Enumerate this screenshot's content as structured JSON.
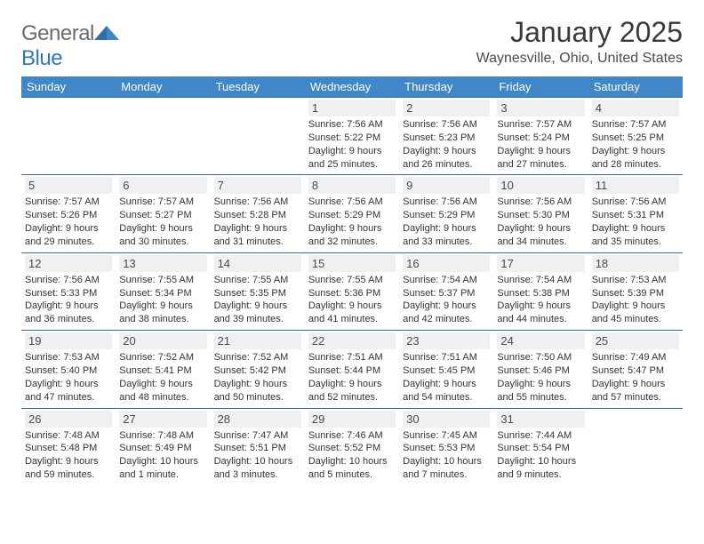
{
  "colors": {
    "header_bg": "#3f87c6",
    "header_text": "#ffffff",
    "daynum_bg": "#eef0f1",
    "daynum_text": "#4a4a4a",
    "row_border": "#2f6ea6",
    "title_text": "#3a3a3a",
    "body_text": "#333333",
    "logo_gray": "#6b6b6b",
    "logo_blue": "#2f79bf"
  },
  "logo": {
    "part1": "General",
    "part2": "Blue"
  },
  "title": "January 2025",
  "location": "Waynesville, Ohio, United States",
  "day_headers": [
    "Sunday",
    "Monday",
    "Tuesday",
    "Wednesday",
    "Thursday",
    "Friday",
    "Saturday"
  ],
  "weeks": [
    [
      {
        "blank": true
      },
      {
        "blank": true
      },
      {
        "blank": true
      },
      {
        "n": "1",
        "sr": "7:56 AM",
        "ss": "5:22 PM",
        "dl": "9 hours and 25 minutes."
      },
      {
        "n": "2",
        "sr": "7:56 AM",
        "ss": "5:23 PM",
        "dl": "9 hours and 26 minutes."
      },
      {
        "n": "3",
        "sr": "7:57 AM",
        "ss": "5:24 PM",
        "dl": "9 hours and 27 minutes."
      },
      {
        "n": "4",
        "sr": "7:57 AM",
        "ss": "5:25 PM",
        "dl": "9 hours and 28 minutes."
      }
    ],
    [
      {
        "n": "5",
        "sr": "7:57 AM",
        "ss": "5:26 PM",
        "dl": "9 hours and 29 minutes."
      },
      {
        "n": "6",
        "sr": "7:57 AM",
        "ss": "5:27 PM",
        "dl": "9 hours and 30 minutes."
      },
      {
        "n": "7",
        "sr": "7:56 AM",
        "ss": "5:28 PM",
        "dl": "9 hours and 31 minutes."
      },
      {
        "n": "8",
        "sr": "7:56 AM",
        "ss": "5:29 PM",
        "dl": "9 hours and 32 minutes."
      },
      {
        "n": "9",
        "sr": "7:56 AM",
        "ss": "5:29 PM",
        "dl": "9 hours and 33 minutes."
      },
      {
        "n": "10",
        "sr": "7:56 AM",
        "ss": "5:30 PM",
        "dl": "9 hours and 34 minutes."
      },
      {
        "n": "11",
        "sr": "7:56 AM",
        "ss": "5:31 PM",
        "dl": "9 hours and 35 minutes."
      }
    ],
    [
      {
        "n": "12",
        "sr": "7:56 AM",
        "ss": "5:33 PM",
        "dl": "9 hours and 36 minutes."
      },
      {
        "n": "13",
        "sr": "7:55 AM",
        "ss": "5:34 PM",
        "dl": "9 hours and 38 minutes."
      },
      {
        "n": "14",
        "sr": "7:55 AM",
        "ss": "5:35 PM",
        "dl": "9 hours and 39 minutes."
      },
      {
        "n": "15",
        "sr": "7:55 AM",
        "ss": "5:36 PM",
        "dl": "9 hours and 41 minutes."
      },
      {
        "n": "16",
        "sr": "7:54 AM",
        "ss": "5:37 PM",
        "dl": "9 hours and 42 minutes."
      },
      {
        "n": "17",
        "sr": "7:54 AM",
        "ss": "5:38 PM",
        "dl": "9 hours and 44 minutes."
      },
      {
        "n": "18",
        "sr": "7:53 AM",
        "ss": "5:39 PM",
        "dl": "9 hours and 45 minutes."
      }
    ],
    [
      {
        "n": "19",
        "sr": "7:53 AM",
        "ss": "5:40 PM",
        "dl": "9 hours and 47 minutes."
      },
      {
        "n": "20",
        "sr": "7:52 AM",
        "ss": "5:41 PM",
        "dl": "9 hours and 48 minutes."
      },
      {
        "n": "21",
        "sr": "7:52 AM",
        "ss": "5:42 PM",
        "dl": "9 hours and 50 minutes."
      },
      {
        "n": "22",
        "sr": "7:51 AM",
        "ss": "5:44 PM",
        "dl": "9 hours and 52 minutes."
      },
      {
        "n": "23",
        "sr": "7:51 AM",
        "ss": "5:45 PM",
        "dl": "9 hours and 54 minutes."
      },
      {
        "n": "24",
        "sr": "7:50 AM",
        "ss": "5:46 PM",
        "dl": "9 hours and 55 minutes."
      },
      {
        "n": "25",
        "sr": "7:49 AM",
        "ss": "5:47 PM",
        "dl": "9 hours and 57 minutes."
      }
    ],
    [
      {
        "n": "26",
        "sr": "7:48 AM",
        "ss": "5:48 PM",
        "dl": "9 hours and 59 minutes."
      },
      {
        "n": "27",
        "sr": "7:48 AM",
        "ss": "5:49 PM",
        "dl": "10 hours and 1 minute."
      },
      {
        "n": "28",
        "sr": "7:47 AM",
        "ss": "5:51 PM",
        "dl": "10 hours and 3 minutes."
      },
      {
        "n": "29",
        "sr": "7:46 AM",
        "ss": "5:52 PM",
        "dl": "10 hours and 5 minutes."
      },
      {
        "n": "30",
        "sr": "7:45 AM",
        "ss": "5:53 PM",
        "dl": "10 hours and 7 minutes."
      },
      {
        "n": "31",
        "sr": "7:44 AM",
        "ss": "5:54 PM",
        "dl": "10 hours and 9 minutes."
      },
      {
        "blank": true
      }
    ]
  ],
  "labels": {
    "sunrise": "Sunrise:",
    "sunset": "Sunset:",
    "daylight": "Daylight:"
  }
}
